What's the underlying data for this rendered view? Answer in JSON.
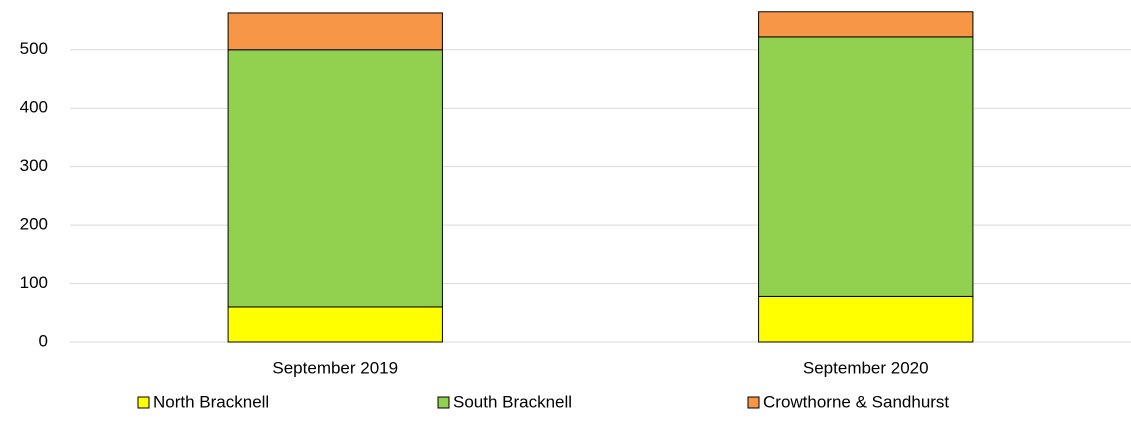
{
  "chart_data": {
    "type": "stacked_bar",
    "categories": [
      "September 2019",
      "September 2020"
    ],
    "series": [
      {
        "name": "North Bracknell",
        "color": "#ffff00",
        "values": [
          60,
          78
        ]
      },
      {
        "name": "South Bracknell",
        "color": "#92d050",
        "values": [
          440,
          444
        ]
      },
      {
        "name": "Crowthorne & Sandhurst",
        "color": "#f79646",
        "values": [
          63,
          43
        ]
      }
    ],
    "ylim": [
      0,
      580
    ],
    "yticks": [
      0,
      100,
      200,
      300,
      400,
      500
    ],
    "grid": true,
    "legend": "bottom"
  }
}
